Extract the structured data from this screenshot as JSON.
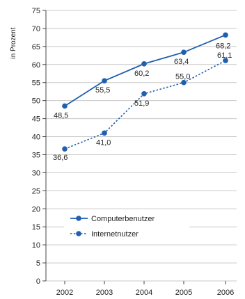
{
  "chart_data": {
    "type": "line",
    "ylabel": "in Prozent",
    "ylim": [
      0,
      75
    ],
    "yticks": [
      0,
      5,
      10,
      15,
      20,
      25,
      30,
      35,
      40,
      45,
      50,
      55,
      60,
      65,
      70,
      75
    ],
    "categories": [
      "2002",
      "2003",
      "2004",
      "2005",
      "2006"
    ],
    "grid": true,
    "legend_position": "lower-left",
    "series": [
      {
        "name": "Computerbenutzer",
        "values": [
          48.5,
          55.5,
          60.2,
          63.4,
          68.2
        ],
        "labels": [
          "48,5",
          "55,5",
          "60,2",
          "63,4",
          "68,2"
        ],
        "style": "solid",
        "color": "#1f5fb0"
      },
      {
        "name": "Internetnutzer",
        "values": [
          36.6,
          41.0,
          51.9,
          55.0,
          61.1
        ],
        "labels": [
          "36,6",
          "41,0",
          "51,9",
          "55,0",
          "61,1"
        ],
        "style": "dotted",
        "color": "#1f5fb0"
      }
    ]
  }
}
